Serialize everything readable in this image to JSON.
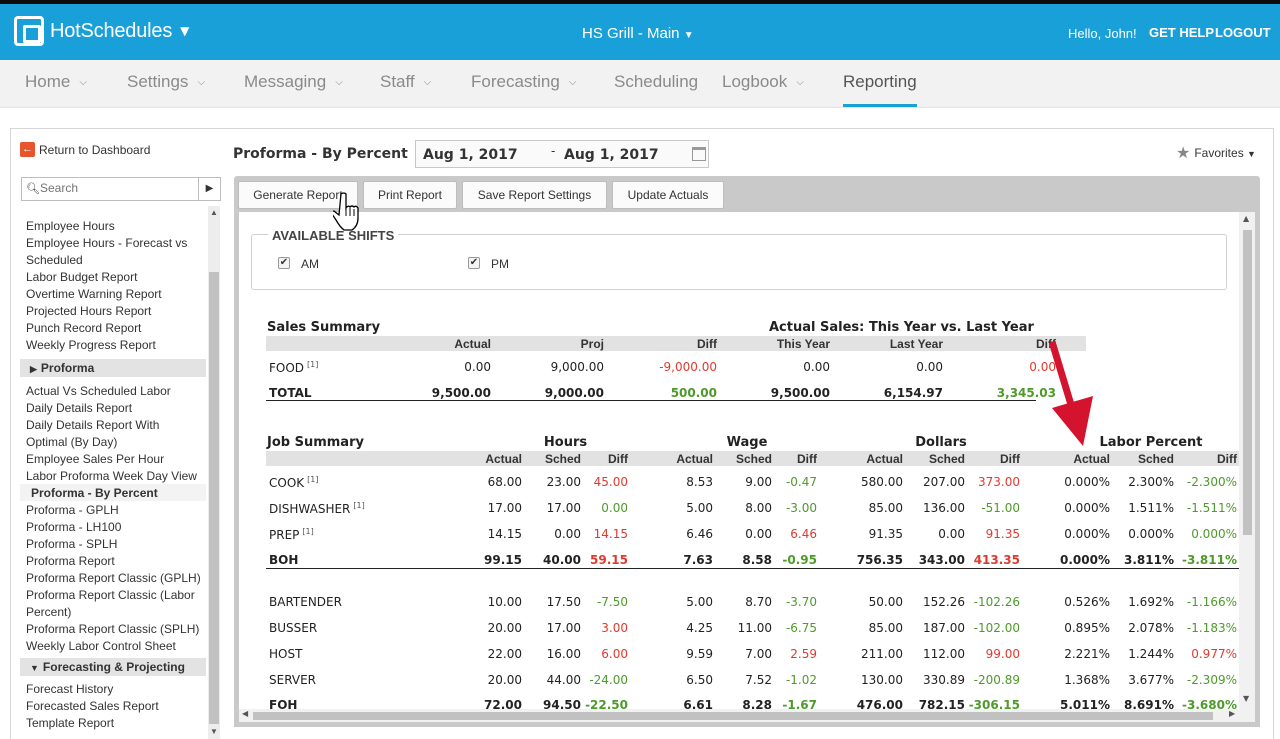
{
  "app": {
    "name": "HotSchedules",
    "location": "HS Grill - Main",
    "greeting": "Hello, John!",
    "get_help": "GET HELP",
    "logout": "LOGOUT"
  },
  "nav": [
    {
      "label": "Home",
      "caret": true,
      "active": false
    },
    {
      "label": "Settings",
      "caret": true,
      "active": false
    },
    {
      "label": "Messaging",
      "caret": true,
      "active": false
    },
    {
      "label": "Staff",
      "caret": true,
      "active": false
    },
    {
      "label": "Forecasting",
      "caret": true,
      "active": false
    },
    {
      "label": "Scheduling",
      "caret": false,
      "active": false
    },
    {
      "label": "Logbook",
      "caret": true,
      "active": false
    },
    {
      "label": "Reporting",
      "caret": false,
      "active": true
    }
  ],
  "sidebar": {
    "return_label": "Return to Dashboard",
    "search_placeholder": "Search",
    "items_group1": [
      "Employee Hours",
      "Employee Hours - Forecast vs",
      "Scheduled",
      "Labor Budget Report",
      "Overtime Warning Report",
      "Projected Hours Report",
      "Punch Record Report",
      "Weekly Progress Report"
    ],
    "section_proforma": "Proforma",
    "items_proforma": [
      "Actual Vs Scheduled Labor",
      "Daily Details Report",
      "Daily Details Report With",
      "Optimal (By Day)",
      "Employee Sales Per Hour",
      "Labor Proforma Week Day View",
      "Proforma - By Percent",
      "Proforma - GPLH",
      "Proforma - LH100",
      "Proforma - SPLH",
      "Proforma Report",
      "Proforma Report Classic (GPLH)",
      "Proforma Report Classic (Labor",
      "Percent)",
      "Proforma Report Classic (SPLH)",
      "Weekly Labor Control Sheet"
    ],
    "section_forecasting": "Forecasting & Projecting",
    "items_forecasting": [
      "Forecast History",
      "Forecasted Sales Report",
      "Template Report"
    ]
  },
  "page": {
    "title": "Proforma - By Percent",
    "date_from": "Aug 1, 2017",
    "date_sep": "-",
    "date_to": "Aug 1, 2017",
    "favorites": "Favorites"
  },
  "toolbar": {
    "generate": "Generate Report",
    "print": "Print Report",
    "save": "Save Report Settings",
    "update": "Update Actuals"
  },
  "shifts": {
    "legend": "AVAILABLE SHIFTS",
    "am": "AM",
    "pm": "PM",
    "am_checked": true,
    "pm_checked": true,
    "check": "✔"
  },
  "sales_summary": {
    "title": "Sales Summary",
    "right_title": "Actual Sales: This Year vs. Last Year",
    "headers": [
      "Actual",
      "Proj",
      "Diff",
      "This Year",
      "Last Year",
      "Diff"
    ],
    "rows": [
      {
        "name": "FOOD",
        "sup": "[1]",
        "vals": [
          "0.00",
          "9,000.00",
          "-9,000.00",
          "0.00",
          "0.00",
          "0.00"
        ],
        "colors": [
          "",
          "",
          "neg",
          "",
          "",
          "neg"
        ],
        "bold": false
      },
      {
        "name": "TOTAL",
        "sup": "",
        "vals": [
          "9,500.00",
          "9,000.00",
          "500.00",
          "9,500.00",
          "6,154.97",
          "3,345.03"
        ],
        "colors": [
          "",
          "",
          "pos",
          "",
          "",
          "pos"
        ],
        "bold": true
      }
    ]
  },
  "job_summary": {
    "title": "Job Summary",
    "groups": [
      "Hours",
      "Wage",
      "Dollars",
      "Labor Percent"
    ],
    "headers": [
      "Actual",
      "Sched",
      "Diff",
      "Actual",
      "Sched",
      "Diff",
      "Actual",
      "Sched",
      "Diff",
      "Actual",
      "Sched",
      "Diff"
    ],
    "rows": [
      {
        "name": "COOK",
        "sup": "[1]",
        "bold": false,
        "vals": [
          "68.00",
          "23.00",
          "45.00",
          "8.53",
          "9.00",
          "-0.47",
          "580.00",
          "207.00",
          "373.00",
          "0.000%",
          "2.300%",
          "-2.300%"
        ],
        "colors": [
          "",
          "",
          "neg",
          "",
          "",
          "pos",
          "",
          "",
          "neg",
          "",
          "",
          "pos"
        ]
      },
      {
        "name": "DISHWASHER",
        "sup": "[1]",
        "bold": false,
        "vals": [
          "17.00",
          "17.00",
          "0.00",
          "5.00",
          "8.00",
          "-3.00",
          "85.00",
          "136.00",
          "-51.00",
          "0.000%",
          "1.511%",
          "-1.511%"
        ],
        "colors": [
          "",
          "",
          "pos",
          "",
          "",
          "pos",
          "",
          "",
          "pos",
          "",
          "",
          "pos"
        ]
      },
      {
        "name": "PREP",
        "sup": "[1]",
        "bold": false,
        "vals": [
          "14.15",
          "0.00",
          "14.15",
          "6.46",
          "0.00",
          "6.46",
          "91.35",
          "0.00",
          "91.35",
          "0.000%",
          "0.000%",
          "0.000%"
        ],
        "colors": [
          "",
          "",
          "neg",
          "",
          "",
          "neg",
          "",
          "",
          "neg",
          "",
          "",
          "pos"
        ]
      },
      {
        "name": "BOH",
        "sup": "",
        "bold": true,
        "vals": [
          "99.15",
          "40.00",
          "59.15",
          "7.63",
          "8.58",
          "-0.95",
          "756.35",
          "343.00",
          "413.35",
          "0.000%",
          "3.811%",
          "-3.811%"
        ],
        "colors": [
          "",
          "",
          "neg",
          "",
          "",
          "pos",
          "",
          "",
          "neg",
          "",
          "",
          "pos"
        ]
      },
      {
        "name": "BARTENDER",
        "sup": "",
        "bold": false,
        "vals": [
          "10.00",
          "17.50",
          "-7.50",
          "5.00",
          "8.70",
          "-3.70",
          "50.00",
          "152.26",
          "-102.26",
          "0.526%",
          "1.692%",
          "-1.166%"
        ],
        "colors": [
          "",
          "",
          "pos",
          "",
          "",
          "pos",
          "",
          "",
          "pos",
          "",
          "",
          "pos"
        ]
      },
      {
        "name": "BUSSER",
        "sup": "",
        "bold": false,
        "vals": [
          "20.00",
          "17.00",
          "3.00",
          "4.25",
          "11.00",
          "-6.75",
          "85.00",
          "187.00",
          "-102.00",
          "0.895%",
          "2.078%",
          "-1.183%"
        ],
        "colors": [
          "",
          "",
          "neg",
          "",
          "",
          "pos",
          "",
          "",
          "pos",
          "",
          "",
          "pos"
        ]
      },
      {
        "name": "HOST",
        "sup": "",
        "bold": false,
        "vals": [
          "22.00",
          "16.00",
          "6.00",
          "9.59",
          "7.00",
          "2.59",
          "211.00",
          "112.00",
          "99.00",
          "2.221%",
          "1.244%",
          "0.977%"
        ],
        "colors": [
          "",
          "",
          "neg",
          "",
          "",
          "neg",
          "",
          "",
          "neg",
          "",
          "",
          "neg"
        ]
      },
      {
        "name": "SERVER",
        "sup": "",
        "bold": false,
        "vals": [
          "20.00",
          "44.00",
          "-24.00",
          "6.50",
          "7.52",
          "-1.02",
          "130.00",
          "330.89",
          "-200.89",
          "1.368%",
          "3.677%",
          "-2.309%"
        ],
        "colors": [
          "",
          "",
          "pos",
          "",
          "",
          "pos",
          "",
          "",
          "pos",
          "",
          "",
          "pos"
        ]
      },
      {
        "name": "FOH",
        "sup": "",
        "bold": true,
        "vals": [
          "72.00",
          "94.50",
          "-22.50",
          "6.61",
          "8.28",
          "-1.67",
          "476.00",
          "782.15",
          "-306.15",
          "5.011%",
          "8.691%",
          "-3.680%"
        ],
        "colors": [
          "",
          "",
          "pos",
          "",
          "",
          "pos",
          "",
          "",
          "pos",
          "",
          "",
          "pos"
        ]
      }
    ]
  },
  "colors": {
    "brand": "#1aa0d8",
    "negative": "#e03a2f",
    "positive": "#4e9a2b",
    "annotation_arrow": "#d4132e"
  }
}
